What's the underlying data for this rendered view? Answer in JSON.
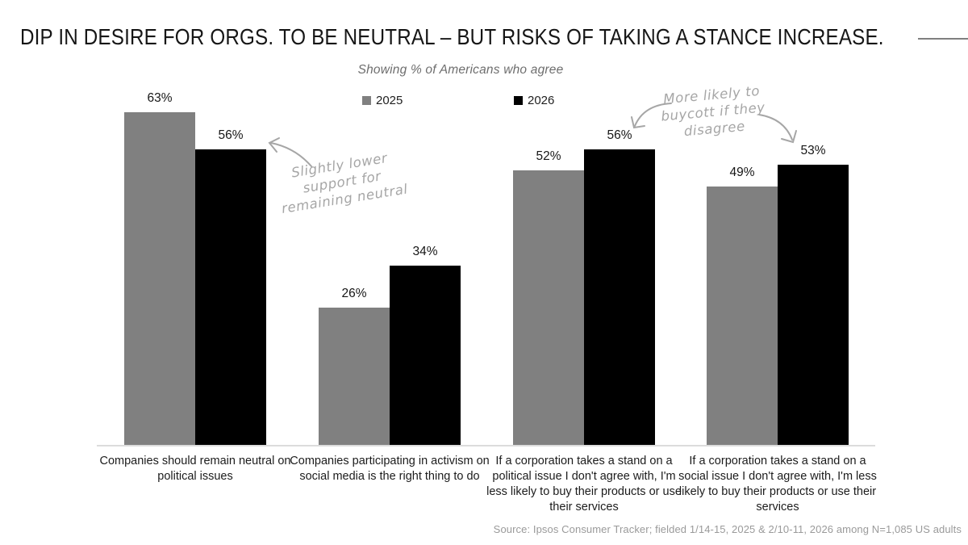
{
  "title": "DIP IN DESIRE FOR ORGS. TO BE NEUTRAL – BUT RISKS OF TAKING A STANCE INCREASE.",
  "subtitle": "Showing % of Americans who agree",
  "legend": [
    {
      "label": "2025",
      "color": "#808080"
    },
    {
      "label": "2026",
      "color": "#000000"
    }
  ],
  "colors": {
    "bar_2025": "#808080",
    "bar_2026": "#000000",
    "annotation": "#a6a6a6",
    "axis_line": "#dcdcdc"
  },
  "annotations": {
    "neutral": {
      "lines": [
        "Slightly lower",
        "support for",
        "remaining neutral"
      ]
    },
    "buycott": {
      "lines": [
        "More likely to",
        "buycott if they",
        "disagree"
      ]
    }
  },
  "chart_data": {
    "type": "bar",
    "categories": [
      "Companies should remain neutral on political issues",
      "Companies participating in activism on social media is the right thing to do",
      "If a corporation takes a stand on a political issue I don't agree with, I'm less likely to buy their products or use their services",
      "If a corporation takes a stand on a social issue I don't agree with, I'm less likely to buy their products or use their services"
    ],
    "series": [
      {
        "name": "2025",
        "values": [
          63,
          26,
          52,
          49
        ]
      },
      {
        "name": "2026",
        "values": [
          56,
          34,
          56,
          53
        ]
      }
    ],
    "value_suffix": "%",
    "title": "Showing % of Americans who agree",
    "xlabel": "",
    "ylabel": "",
    "ylim": [
      0,
      70
    ],
    "grid": false,
    "legend_position": "top"
  },
  "source": "Source: Ipsos Consumer Tracker; fielded 1/14-15, 2025 & 2/10-11, 2026 among N=1,085 US adults"
}
